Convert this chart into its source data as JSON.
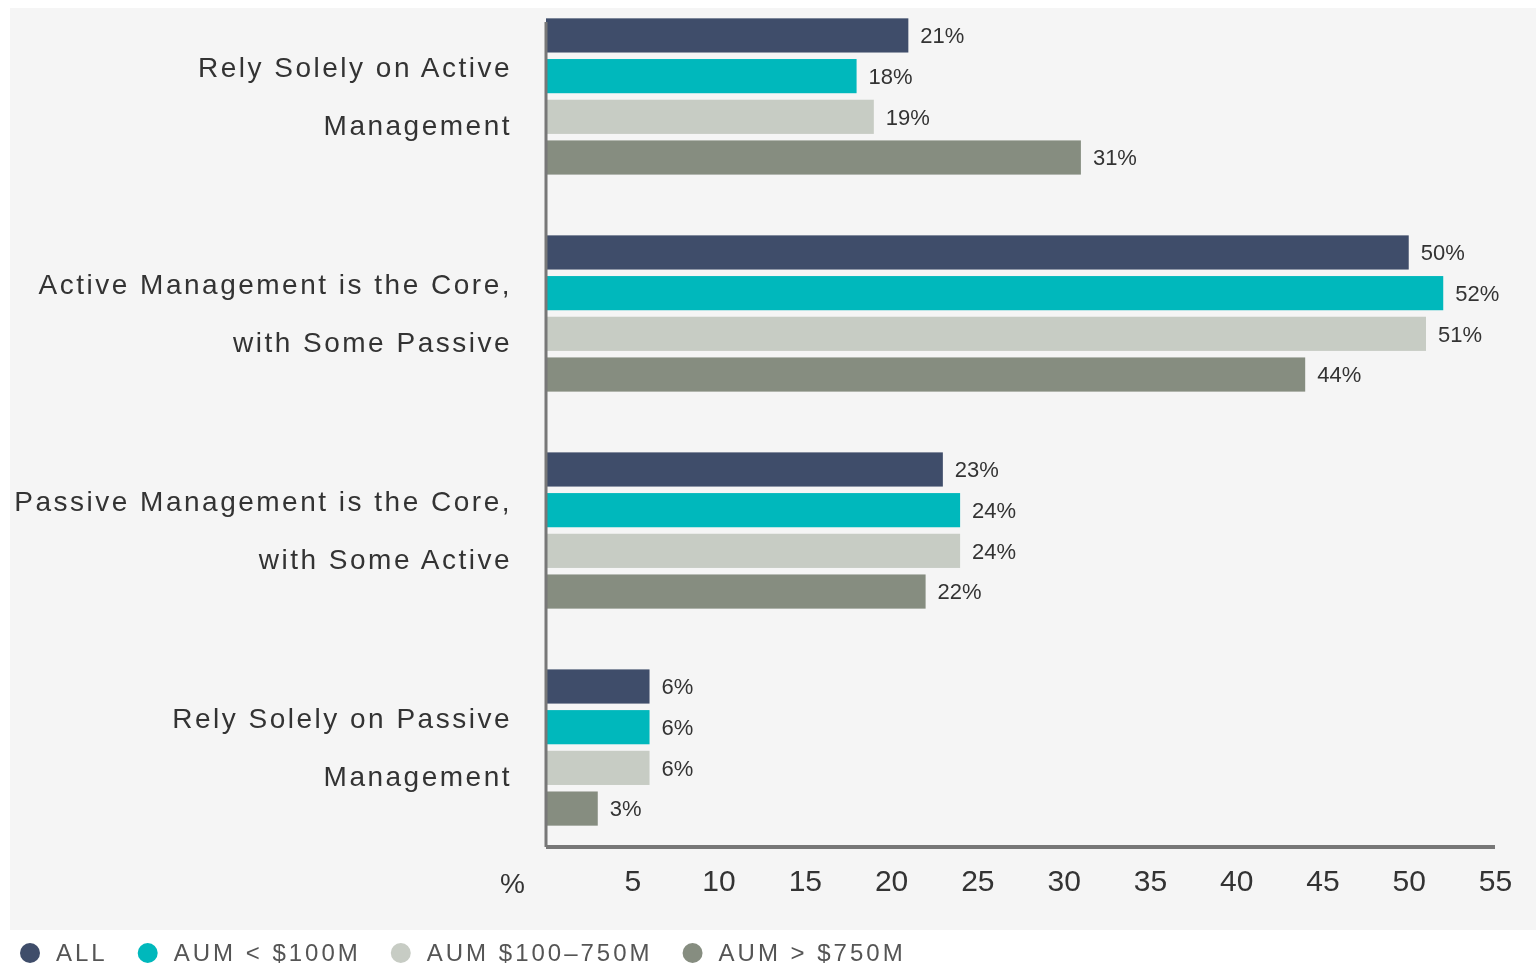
{
  "chart_data": {
    "type": "bar",
    "orientation": "horizontal",
    "xlabel": "%",
    "categories": [
      "Rely Solely on Active Management",
      "Active Management is the Core, with Some Passive",
      "Passive Management is the Core, with Some Active",
      "Rely Solely on Passive Management"
    ],
    "series": [
      {
        "name": "ALL",
        "color": "#3f4d6a",
        "values": [
          21,
          50,
          23,
          6
        ],
        "value_labels": [
          "21%",
          "50%",
          "23%",
          "6%"
        ]
      },
      {
        "name": "AUM < $100M",
        "color": "#00b8bc",
        "values": [
          18,
          52,
          24,
          6
        ],
        "value_labels": [
          "18%",
          "52%",
          "24%",
          "6%"
        ]
      },
      {
        "name": "AUM $100–750M",
        "color": "#c7ccc4",
        "values": [
          19,
          51,
          24,
          6
        ],
        "value_labels": [
          "19%",
          "51%",
          "24%",
          "6%"
        ]
      },
      {
        "name": "AUM > $750M",
        "color": "#868d80",
        "values": [
          31,
          44,
          22,
          3
        ],
        "value_labels": [
          "31%",
          "44%",
          "22%",
          "3%"
        ]
      }
    ],
    "xlim": [
      0,
      55
    ],
    "xticks": [
      5,
      10,
      15,
      20,
      25,
      30,
      35,
      40,
      45,
      50,
      55
    ],
    "grid": false,
    "legend": "bottom left"
  }
}
